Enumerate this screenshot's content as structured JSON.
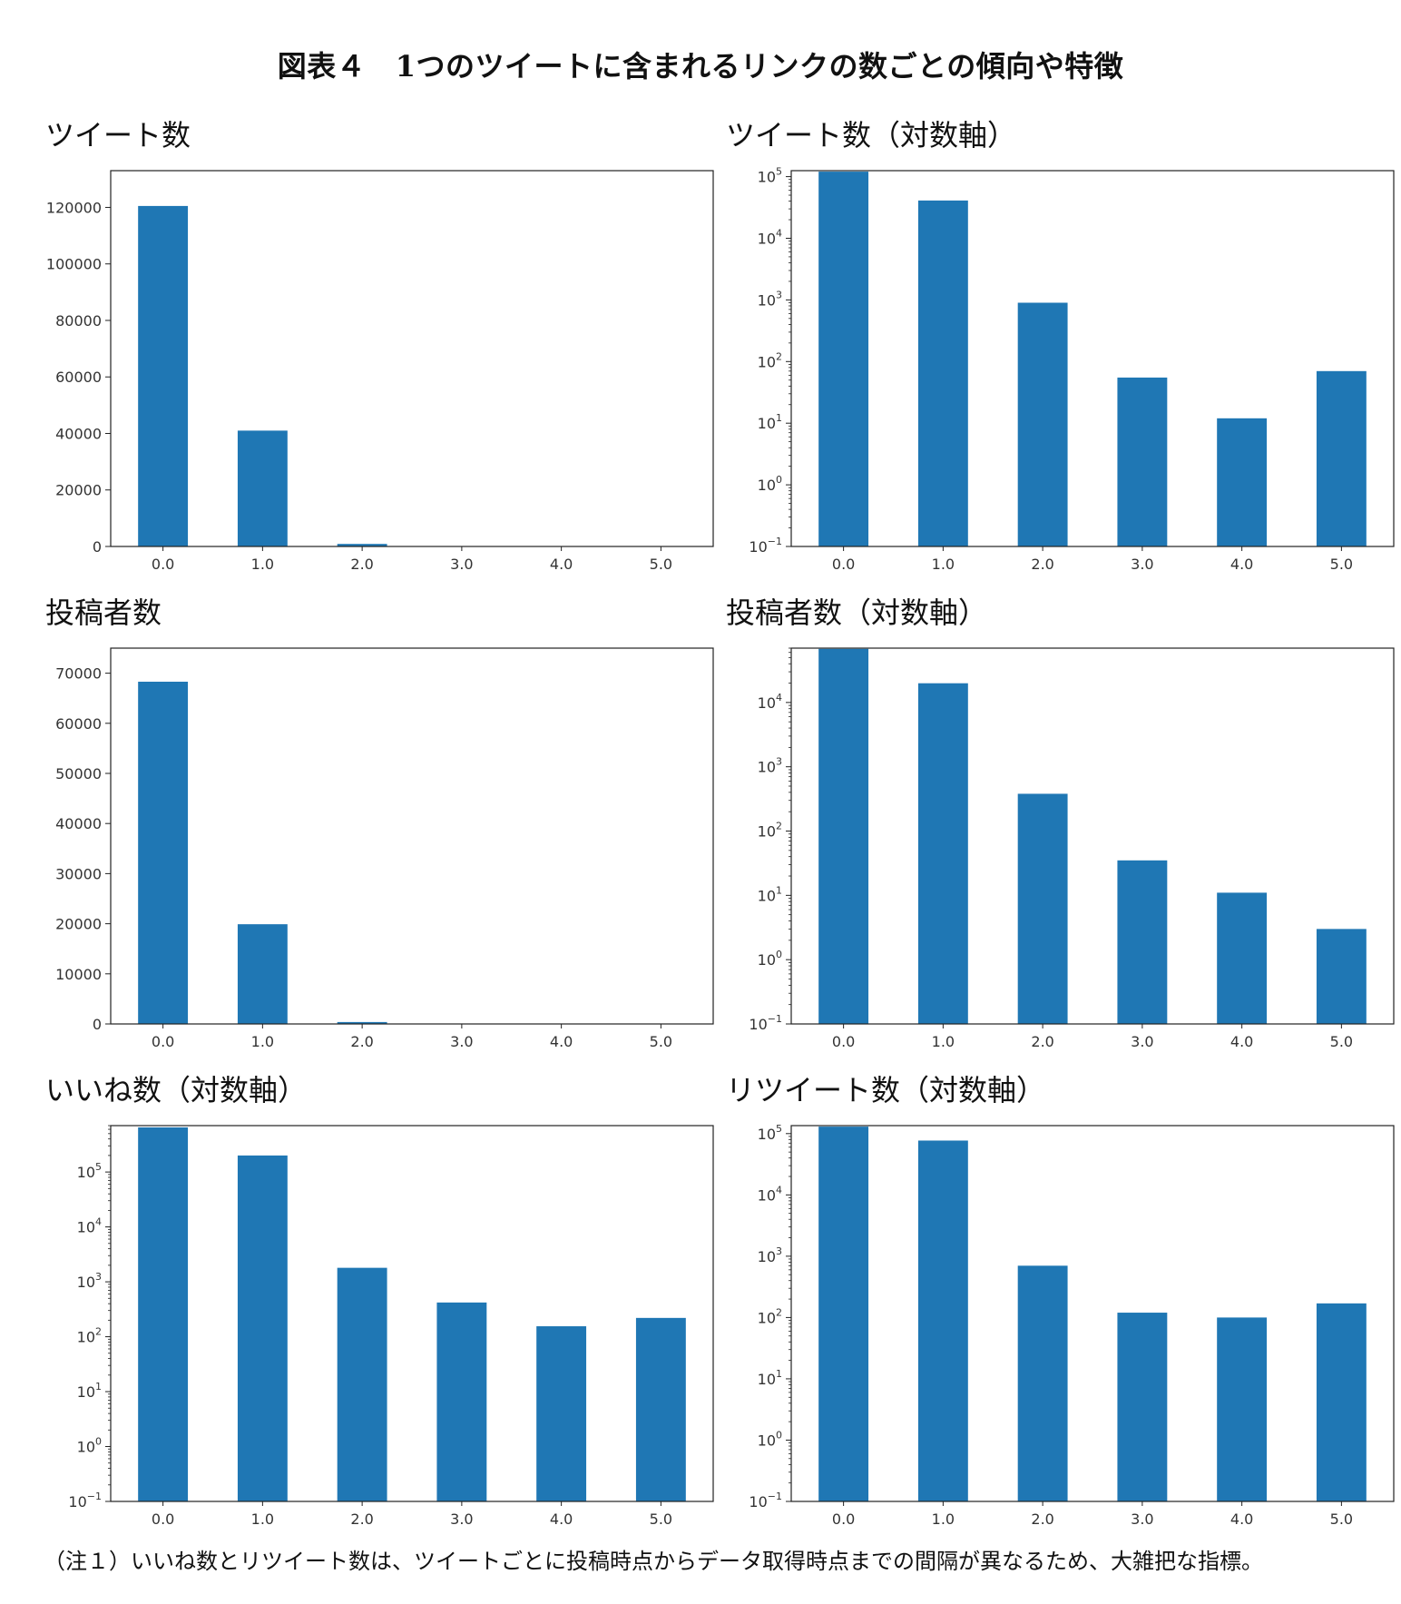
{
  "figure_title": "図表４　1つのツイートに含まれるリンクの数ごとの傾向や特徴",
  "note": "（注１）いいね数とリツイート数は、ツイートごとに投稿時点からデータ取得時点までの間隔が異なるため、大雑把な指標。",
  "colors": {
    "bar": "#1f77b4",
    "frame": "#222222"
  },
  "chart_data": [
    {
      "type": "bar",
      "title": "ツイート数",
      "scale": "linear",
      "categories": [
        "0.0",
        "1.0",
        "2.0",
        "3.0",
        "4.0",
        "5.0"
      ],
      "values": [
        120500,
        41000,
        900,
        55,
        12,
        70
      ],
      "ylim": [
        0,
        133000
      ],
      "yticks": [
        0,
        20000,
        40000,
        60000,
        80000,
        100000,
        120000
      ],
      "grid": false
    },
    {
      "type": "bar",
      "title": "ツイート数（対数軸）",
      "scale": "log",
      "categories": [
        "0.0",
        "1.0",
        "2.0",
        "3.0",
        "4.0",
        "5.0"
      ],
      "values": [
        120500,
        41000,
        900,
        55,
        12,
        70
      ],
      "ylim": [
        0.1,
        125000
      ],
      "yticks_exp": [
        -1,
        0,
        1,
        2,
        3,
        4,
        5
      ],
      "grid": false
    },
    {
      "type": "bar",
      "title": "投稿者数",
      "scale": "linear",
      "categories": [
        "0.0",
        "1.0",
        "2.0",
        "3.0",
        "4.0",
        "5.0"
      ],
      "values": [
        68300,
        19900,
        380,
        35,
        11,
        3
      ],
      "ylim": [
        0,
        75000
      ],
      "yticks": [
        0,
        10000,
        20000,
        30000,
        40000,
        50000,
        60000,
        70000
      ],
      "grid": false
    },
    {
      "type": "bar",
      "title": "投稿者数（対数軸）",
      "scale": "log",
      "categories": [
        "0.0",
        "1.0",
        "2.0",
        "3.0",
        "4.0",
        "5.0"
      ],
      "values": [
        68300,
        19900,
        380,
        35,
        11,
        3
      ],
      "ylim": [
        0.1,
        70000
      ],
      "yticks_exp": [
        -1,
        0,
        1,
        2,
        3,
        4
      ],
      "grid": false
    },
    {
      "type": "bar",
      "title": "いいね数（対数軸）",
      "scale": "log",
      "categories": [
        "0.0",
        "1.0",
        "2.0",
        "3.0",
        "4.0",
        "5.0"
      ],
      "values": [
        650000,
        200000,
        1800,
        420,
        155,
        220
      ],
      "ylim": [
        0.1,
        700000
      ],
      "yticks_exp": [
        -1,
        0,
        1,
        2,
        3,
        4,
        5
      ],
      "grid": false
    },
    {
      "type": "bar",
      "title": "リツイート数（対数軸）",
      "scale": "log",
      "categories": [
        "0.0",
        "1.0",
        "2.0",
        "3.0",
        "4.0",
        "5.0"
      ],
      "values": [
        130000,
        77000,
        700,
        120,
        100,
        170
      ],
      "ylim": [
        0.1,
        135000
      ],
      "yticks_exp": [
        -1,
        0,
        1,
        2,
        3,
        4,
        5
      ],
      "grid": false
    }
  ]
}
